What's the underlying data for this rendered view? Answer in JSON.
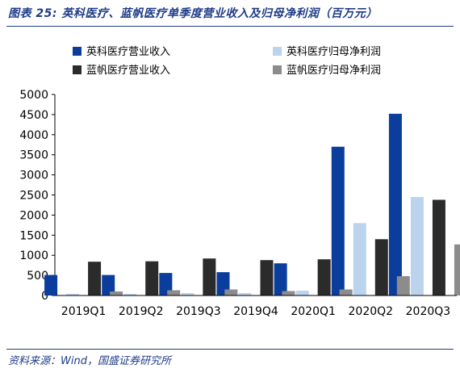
{
  "header": {
    "title": "图表 25:  英科医疗、蓝帆医疗单季度营业收入及归母净利润（百万元）"
  },
  "footer": {
    "source": "资料来源：Wind，国盛证券研究所"
  },
  "chart_data": {
    "type": "bar",
    "title": "",
    "xlabel": "",
    "ylabel": "",
    "categories": [
      "2019Q1",
      "2019Q2",
      "2019Q3",
      "2019Q4",
      "2020Q1",
      "2020Q2",
      "2020Q3"
    ],
    "ylim": [
      0,
      5000
    ],
    "yticks": [
      0,
      500,
      1000,
      1500,
      2000,
      2500,
      3000,
      3500,
      4000,
      4500,
      5000
    ],
    "grid": false,
    "legend_position": "top",
    "series": [
      {
        "name": "英科医疗营业收入",
        "color": "#0b3d9c",
        "values": [
          510,
          510,
          560,
          580,
          800,
          3700,
          4520
        ]
      },
      {
        "name": "英科医疗归母净利润",
        "color": "#bcd3ee",
        "values": [
          40,
          40,
          60,
          60,
          120,
          1800,
          2450
        ]
      },
      {
        "name": "蓝帆医疗营业收入",
        "color": "#2b2b2b",
        "values": [
          840,
          850,
          920,
          880,
          900,
          1400,
          2380
        ]
      },
      {
        "name": "蓝帆医疗归母净利润",
        "color": "#8c8c8c",
        "values": [
          100,
          130,
          150,
          110,
          150,
          480,
          1270
        ]
      }
    ]
  }
}
